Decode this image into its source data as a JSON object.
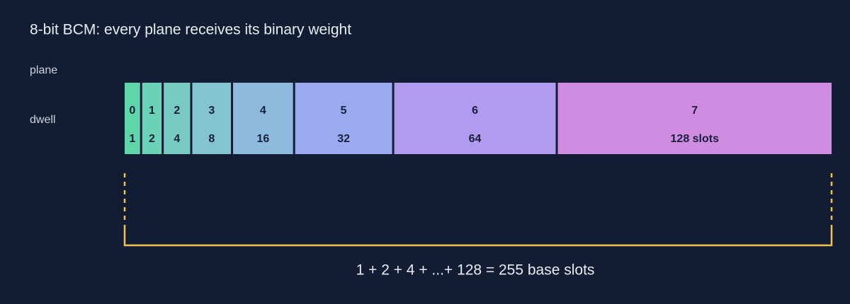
{
  "title": "8-bit BCM: every plane receives its binary weight",
  "row_labels": {
    "plane": "plane",
    "dwell": "dwell"
  },
  "planes": [
    {
      "plane": 0,
      "dwell": 1,
      "color": "#5fd6a9"
    },
    {
      "plane": 1,
      "dwell": 2,
      "color": "#6cd2b6"
    },
    {
      "plane": 2,
      "dwell": 4,
      "color": "#78cbc3"
    },
    {
      "plane": 3,
      "dwell": 8,
      "color": "#84c3d0"
    },
    {
      "plane": 4,
      "dwell": 16,
      "color": "#8ebadd"
    },
    {
      "plane": 5,
      "dwell": 32,
      "color": "#9aabf0"
    },
    {
      "plane": 6,
      "dwell": 64,
      "color": "#b19bf0"
    },
    {
      "plane": 7,
      "dwell": {
        "value": 128,
        "label": "128 slots"
      },
      "color": "#d08ce0"
    }
  ],
  "caption": "1 + 2 + 4 + ...+ 128 = 255 base slots"
}
